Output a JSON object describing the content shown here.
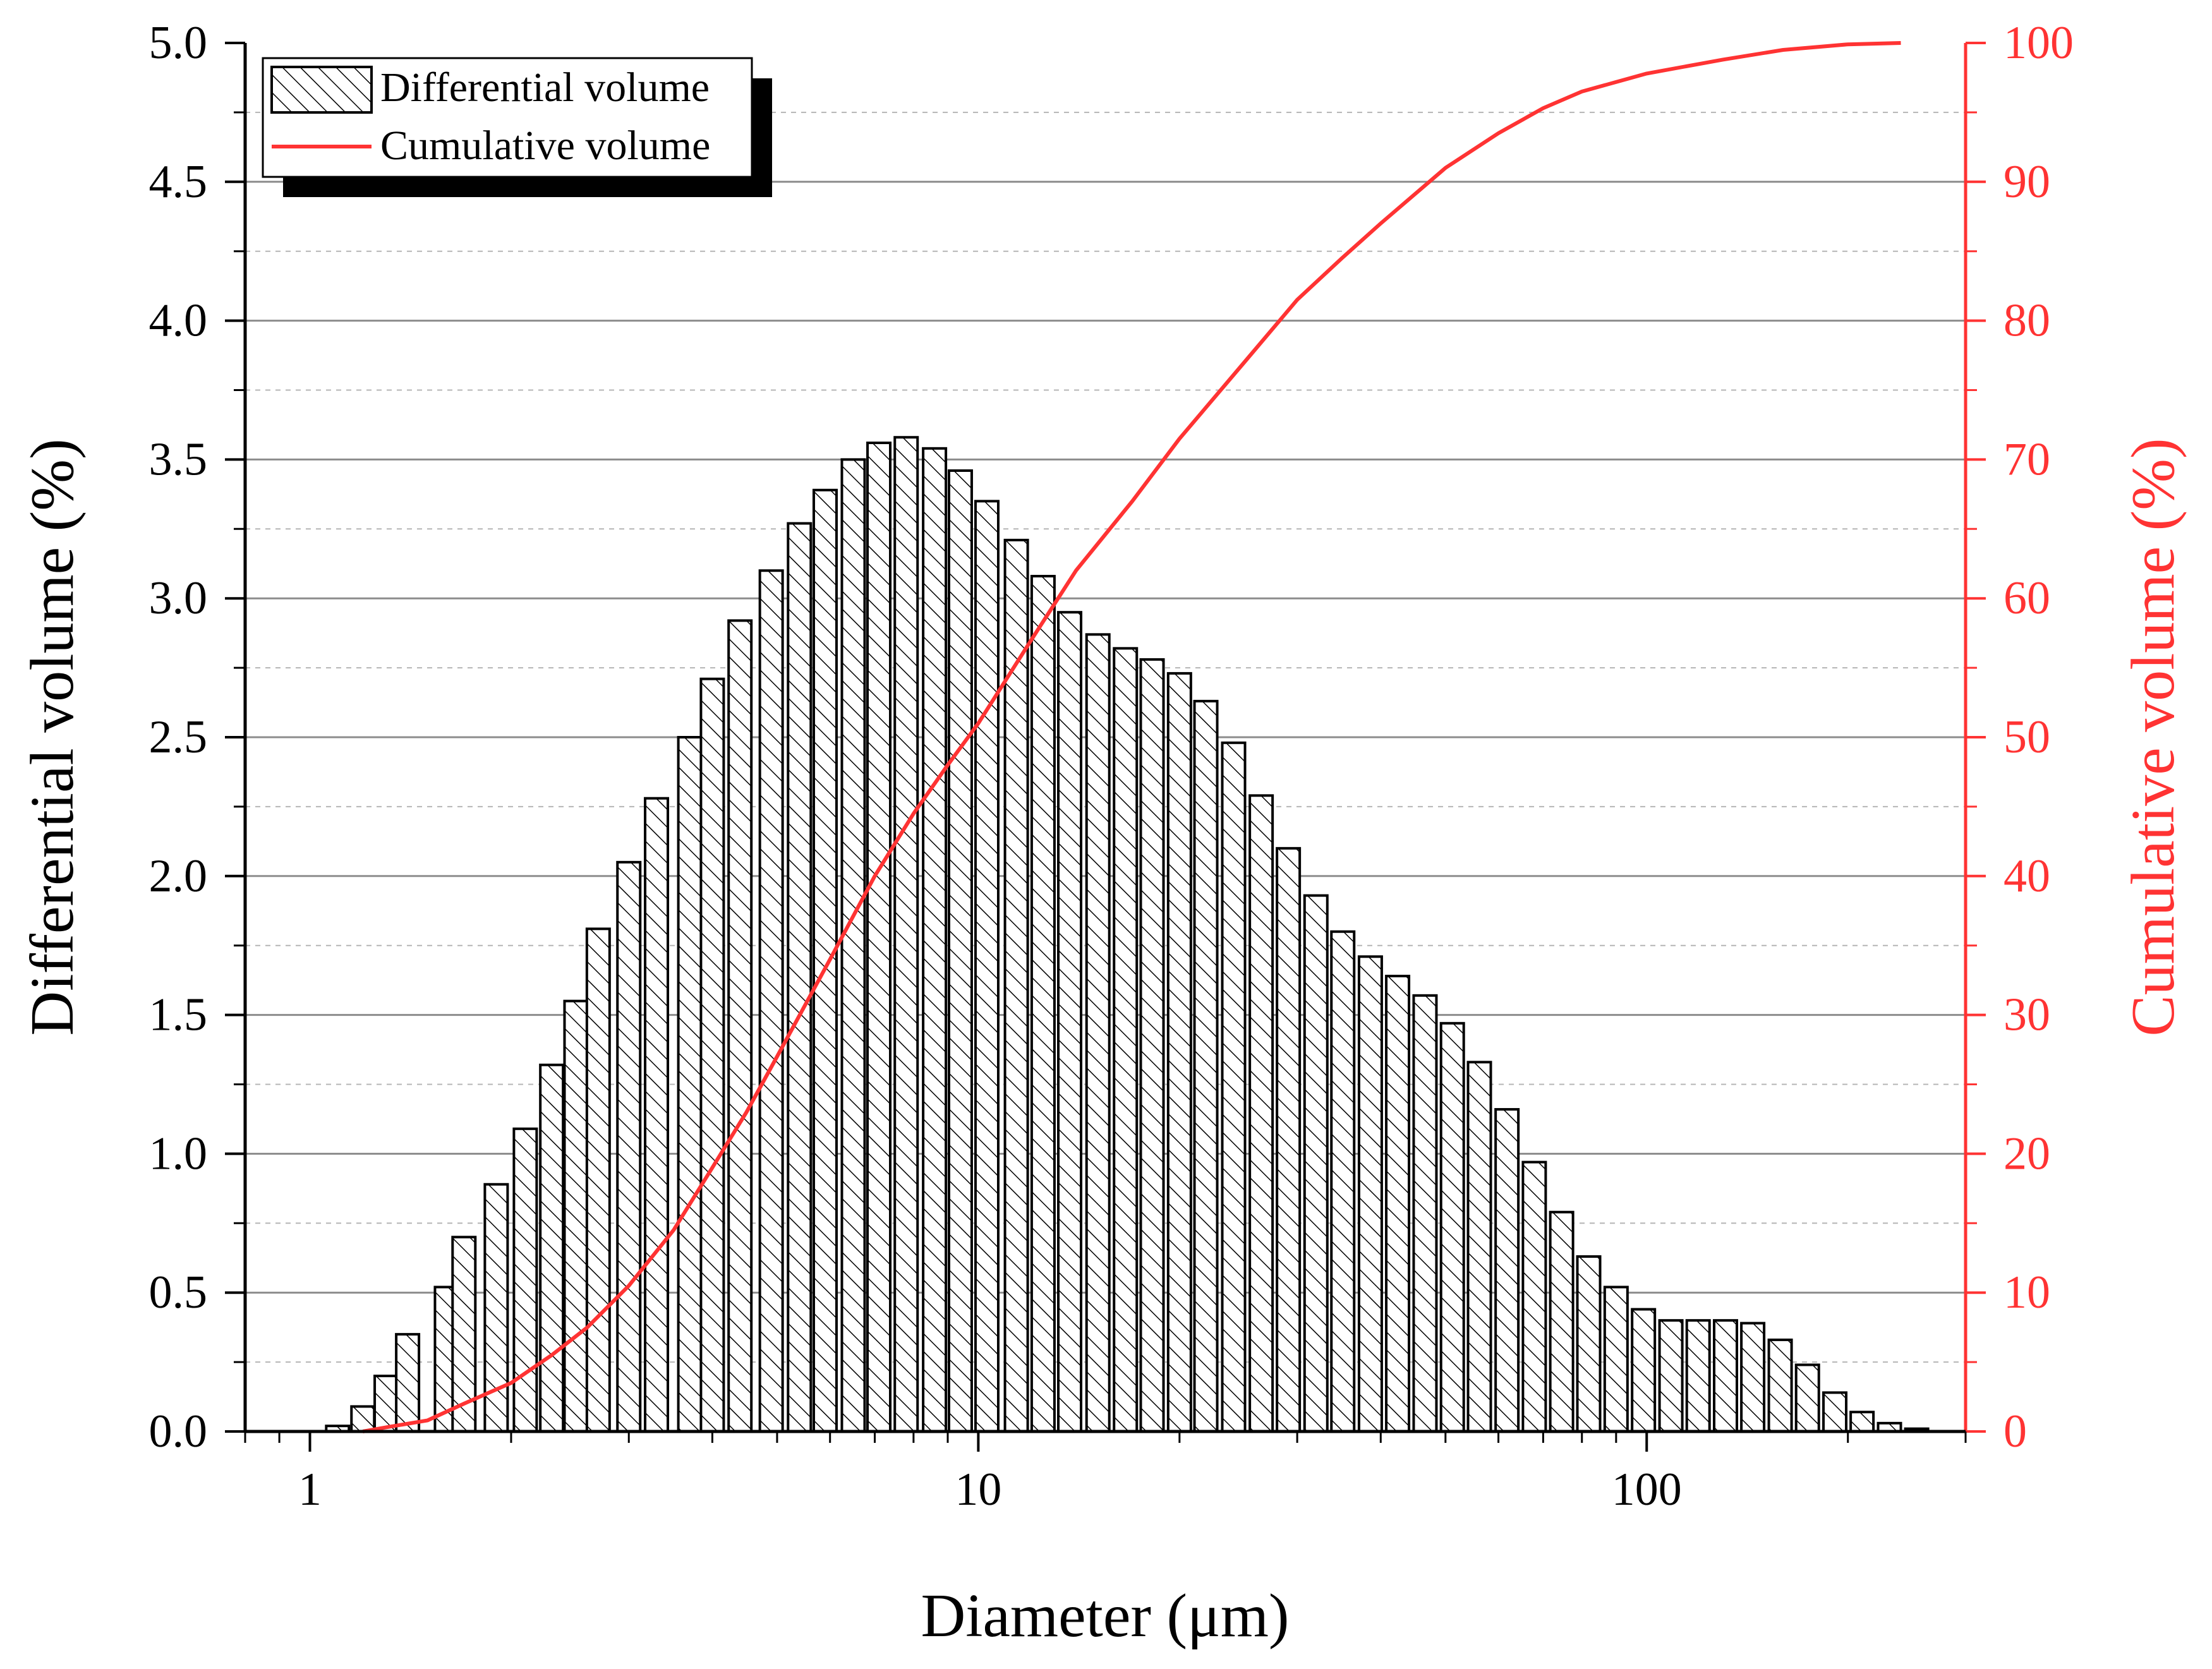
{
  "chart_data": {
    "type": "bar",
    "xlabel": "Diameter (μm)",
    "ylabel_left": "Differential volume (%)",
    "ylabel_right": "Cumulative volume (%)",
    "x_scale": "log",
    "xlim": [
      0.8,
      300
    ],
    "ylim_left": [
      0,
      5.0
    ],
    "ylim_right": [
      0,
      100
    ],
    "x_ticks": [
      1,
      10,
      100
    ],
    "x_tick_labels": [
      "1",
      "10",
      "100"
    ],
    "y_left_ticks": [
      "0.0",
      "0.5",
      "1.0",
      "1.5",
      "2.0",
      "2.5",
      "3.0",
      "3.5",
      "4.0",
      "4.5",
      "5.0"
    ],
    "y_right_ticks": [
      "0",
      "10",
      "20",
      "30",
      "40",
      "50",
      "60",
      "70",
      "80",
      "90",
      "100"
    ],
    "grid": true,
    "legend_position": "top-left",
    "legend": [
      {
        "label": "Differential volume",
        "style": "hatched-bar"
      },
      {
        "label": "Cumulative volume",
        "style": "red-line"
      }
    ],
    "colors": {
      "bars_stroke": "#000000",
      "cumulative": "#ff3333",
      "grid": "#808080"
    },
    "series": [
      {
        "name": "Differential volume",
        "type": "bar",
        "axis": "left",
        "x": [
          1.1,
          1.2,
          1.3,
          1.4,
          1.6,
          1.7,
          1.9,
          2.1,
          2.3,
          2.5,
          2.7,
          3.0,
          3.3,
          3.7,
          4.0,
          4.4,
          4.9,
          5.4,
          5.9,
          6.5,
          7.1,
          7.8,
          8.6,
          9.4,
          10.3,
          11.4,
          12.5,
          13.7,
          15.1,
          16.6,
          18.2,
          20.0,
          21.9,
          24.1,
          26.5,
          29.1,
          32.0,
          35.1,
          38.6,
          42.4,
          46.6,
          51.2,
          56.2,
          61.8,
          67.9,
          74.6,
          81.9,
          90.0,
          98.9,
          108.7,
          119.4,
          131.2,
          144.1,
          158.4,
          174.0,
          191.2,
          210.0,
          230.8,
          253.5
        ],
        "values": [
          0.02,
          0.09,
          0.2,
          0.35,
          0.52,
          0.7,
          0.89,
          1.09,
          1.32,
          1.55,
          1.81,
          2.05,
          2.28,
          2.5,
          2.71,
          2.92,
          3.1,
          3.27,
          3.39,
          3.5,
          3.56,
          3.58,
          3.54,
          3.46,
          3.35,
          3.21,
          3.08,
          2.95,
          2.87,
          2.82,
          2.78,
          2.73,
          2.63,
          2.48,
          2.29,
          2.1,
          1.93,
          1.8,
          1.71,
          1.64,
          1.57,
          1.47,
          1.33,
          1.16,
          0.97,
          0.79,
          0.63,
          0.52,
          0.44,
          0.4,
          0.4,
          0.4,
          0.39,
          0.33,
          0.24,
          0.14,
          0.07,
          0.03,
          0.01
        ]
      },
      {
        "name": "Cumulative volume",
        "type": "line",
        "axis": "right",
        "x": [
          1.2,
          1.3,
          1.5,
          1.7,
          2.0,
          2.3,
          2.6,
          3.0,
          3.5,
          4.0,
          4.5,
          5.0,
          6.0,
          7.0,
          8.0,
          9.0,
          10.0,
          12.0,
          14.0,
          17.0,
          20.0,
          25.0,
          30.0,
          35.0,
          40.0,
          50.0,
          60.0,
          70.0,
          80.0,
          100.0,
          130.0,
          160.0,
          200.0,
          240.0
        ],
        "values": [
          0,
          0.3,
          0.8,
          2,
          3.5,
          5.5,
          7.5,
          10.5,
          14.5,
          19,
          23,
          27,
          34,
          40,
          44.5,
          48,
          51,
          57,
          62,
          67,
          71.5,
          77,
          81.5,
          84.5,
          87,
          91,
          93.5,
          95.3,
          96.5,
          97.8,
          98.8,
          99.5,
          99.9,
          100
        ]
      }
    ]
  }
}
